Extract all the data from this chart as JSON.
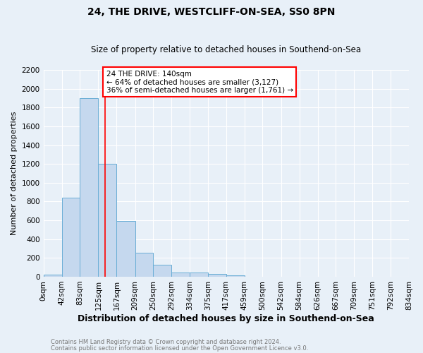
{
  "title": "24, THE DRIVE, WESTCLIFF-ON-SEA, SS0 8PN",
  "subtitle": "Size of property relative to detached houses in Southend-on-Sea",
  "xlabel": "Distribution of detached houses by size in Southend-on-Sea",
  "ylabel": "Number of detached properties",
  "bar_values": [
    20,
    840,
    1900,
    1200,
    590,
    255,
    125,
    42,
    42,
    28,
    18,
    0,
    0,
    0,
    0,
    0,
    0,
    0,
    0,
    0
  ],
  "bin_edges": [
    0,
    42,
    83,
    125,
    167,
    209,
    250,
    292,
    334,
    375,
    417,
    459,
    500,
    542,
    584,
    626,
    667,
    709,
    751,
    792,
    834
  ],
  "bin_labels": [
    "0sqm",
    "42sqm",
    "83sqm",
    "125sqm",
    "167sqm",
    "209sqm",
    "250sqm",
    "292sqm",
    "334sqm",
    "375sqm",
    "417sqm",
    "459sqm",
    "500sqm",
    "542sqm",
    "584sqm",
    "626sqm",
    "667sqm",
    "709sqm",
    "751sqm",
    "792sqm",
    "834sqm"
  ],
  "bar_color": "#c5d8ee",
  "bar_edge_color": "#6aaed6",
  "vline_x": 140,
  "vline_color": "red",
  "ylim": [
    0,
    2200
  ],
  "yticks": [
    0,
    200,
    400,
    600,
    800,
    1000,
    1200,
    1400,
    1600,
    1800,
    2000,
    2200
  ],
  "annotation_text": "24 THE DRIVE: 140sqm\n← 64% of detached houses are smaller (3,127)\n36% of semi-detached houses are larger (1,761) →",
  "annotation_box_color": "white",
  "annotation_box_edge_color": "red",
  "footer_line1": "Contains HM Land Registry data © Crown copyright and database right 2024.",
  "footer_line2": "Contains public sector information licensed under the Open Government Licence v3.0.",
  "background_color": "#e8f0f8",
  "grid_color": "white",
  "fig_width": 6.0,
  "fig_height": 5.0,
  "title_fontsize": 10,
  "subtitle_fontsize": 8.5,
  "xlabel_fontsize": 9,
  "ylabel_fontsize": 8,
  "tick_fontsize": 7.5,
  "annotation_fontsize": 7.5,
  "footer_fontsize": 6.0
}
